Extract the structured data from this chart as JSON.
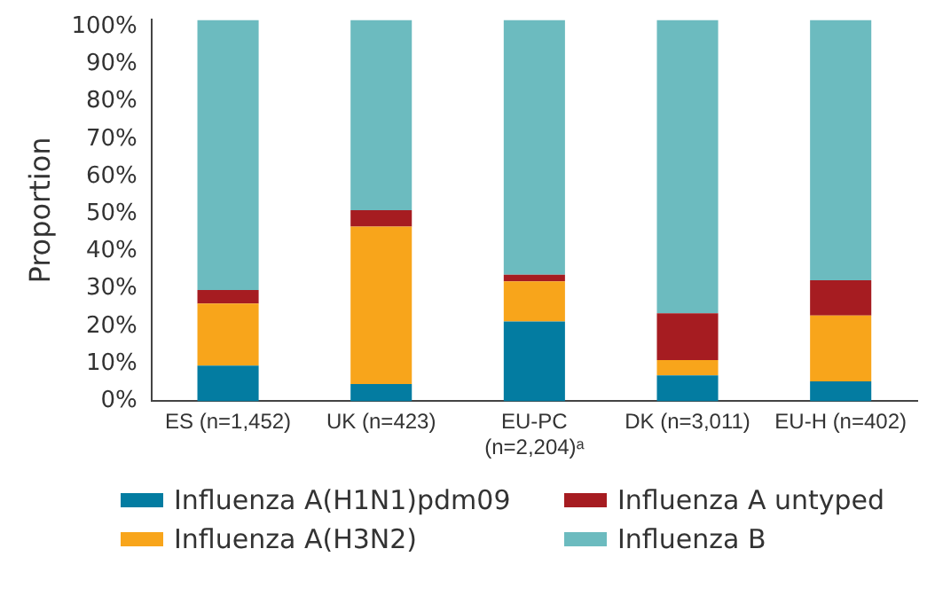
{
  "chart_data": {
    "type": "bar",
    "stacked": true,
    "ylabel": "Proportion",
    "categories": [
      "ES (n=1,452)",
      "UK (n=423)",
      "EU-PC (n=2,204)ᵃ",
      "DK (n=3,011)",
      "EU-H (n=402)"
    ],
    "series": [
      {
        "name": "Influenza A(H1N1)pdm09",
        "color": "#037ca1",
        "values": [
          9.5,
          4.6,
          21.3,
          6.9,
          5.3
        ]
      },
      {
        "name": "Influenza A(H3N2)",
        "color": "#f8a51b",
        "values": [
          16.6,
          42.0,
          10.7,
          4.1,
          17.6
        ]
      },
      {
        "name": "Influenza A untyped",
        "color": "#a61c21",
        "values": [
          3.6,
          4.4,
          1.8,
          12.5,
          9.4
        ]
      },
      {
        "name": "Influenza B",
        "color": "#6cbbbf",
        "values": [
          72.0,
          50.7,
          67.9,
          78.2,
          69.4
        ]
      }
    ],
    "ylim": [
      0,
      102
    ],
    "yticks": [
      {
        "value": 0,
        "label": "0%"
      },
      {
        "value": 10,
        "label": "10%"
      },
      {
        "value": 20,
        "label": "20%"
      },
      {
        "value": 30,
        "label": "30%"
      },
      {
        "value": 40,
        "label": "40%"
      },
      {
        "value": 50,
        "label": "50%"
      },
      {
        "value": 60,
        "label": "60%"
      },
      {
        "value": 70,
        "label": "70%"
      },
      {
        "value": 80,
        "label": "80%"
      },
      {
        "value": 90,
        "label": "90%"
      },
      {
        "value": 100,
        "label": "100%"
      }
    ],
    "grid": false,
    "legend": "bottom"
  }
}
